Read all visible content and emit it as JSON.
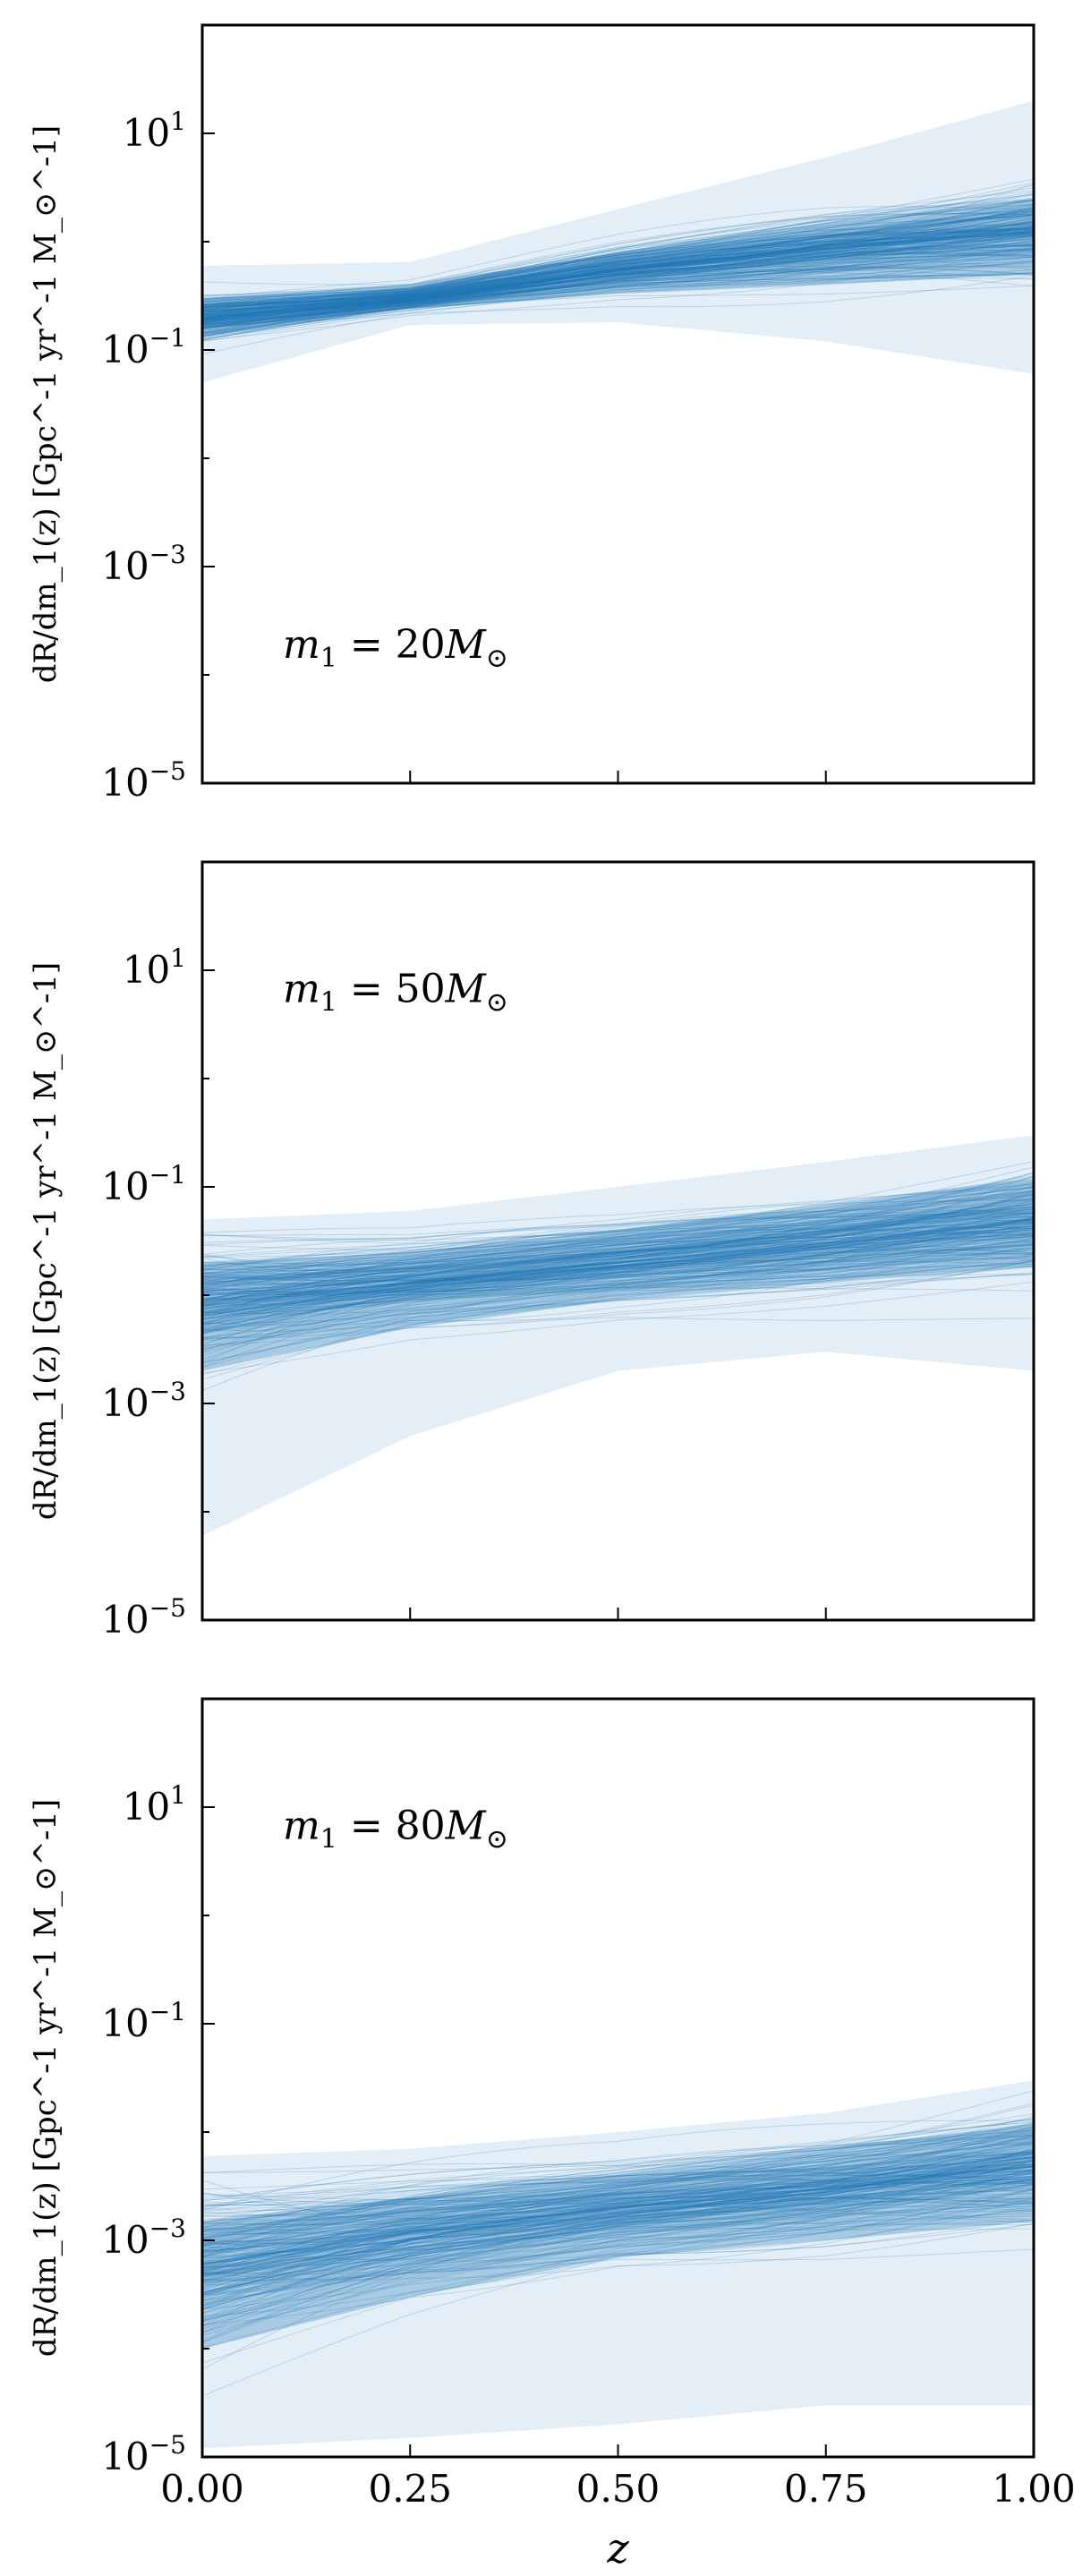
{
  "chart_data": [
    {
      "type": "line",
      "panel_id": "m20",
      "annotation": "m_1 = 20M_⊙",
      "annotation_parts": {
        "var": "m",
        "sub": "1",
        "eq": "= 20",
        "M": "M",
        "sun": "⊙"
      },
      "ylabel": "dR/dm_1(z) [Gpc^-1 yr^-1 M_⊙^-1]",
      "yscale": "log",
      "ylim": [
        1e-05,
        100
      ],
      "xlim": [
        0.0,
        1.0
      ],
      "ytick_labels": [
        {
          "base": "10",
          "exp": "1",
          "value": 10
        },
        {
          "base": "10",
          "exp": "−1",
          "value": 0.1
        },
        {
          "base": "10",
          "exp": "−3",
          "value": 0.001
        },
        {
          "base": "10",
          "exp": "−5",
          "value": 1e-05
        }
      ],
      "x_ticks": [
        0.0,
        0.25,
        0.5,
        0.75,
        1.0
      ],
      "show_xtick_labels": false,
      "xlabel": "",
      "color": "#1f77b4",
      "band": {
        "x": [
          0.0,
          0.25,
          0.5,
          0.75,
          1.0
        ],
        "median": [
          0.2,
          0.3,
          0.55,
          0.85,
          1.25
        ],
        "inner_low": [
          0.13,
          0.24,
          0.33,
          0.4,
          0.5
        ],
        "inner_high": [
          0.3,
          0.4,
          0.8,
          1.5,
          2.5
        ],
        "outer_low": [
          0.05,
          0.17,
          0.18,
          0.12,
          0.06
        ],
        "outer_high": [
          0.6,
          0.65,
          2.0,
          6.0,
          20.0
        ]
      }
    },
    {
      "type": "line",
      "panel_id": "m50",
      "annotation": "m_1 = 50M_⊙",
      "annotation_parts": {
        "var": "m",
        "sub": "1",
        "eq": "= 50",
        "M": "M",
        "sun": "⊙"
      },
      "ylabel": "dR/dm_1(z) [Gpc^-1 yr^-1 M_⊙^-1]",
      "yscale": "log",
      "ylim": [
        1e-05,
        100
      ],
      "xlim": [
        0.0,
        1.0
      ],
      "ytick_labels": [
        {
          "base": "10",
          "exp": "1",
          "value": 10
        },
        {
          "base": "10",
          "exp": "−1",
          "value": 0.1
        },
        {
          "base": "10",
          "exp": "−3",
          "value": 0.001
        },
        {
          "base": "10",
          "exp": "−5",
          "value": 1e-05
        }
      ],
      "x_ticks": [
        0.0,
        0.25,
        0.5,
        0.75,
        1.0
      ],
      "show_xtick_labels": false,
      "xlabel": "",
      "color": "#1f77b4",
      "band": {
        "x": [
          0.0,
          0.25,
          0.5,
          0.75,
          1.0
        ],
        "median": [
          0.008,
          0.013,
          0.02,
          0.03,
          0.05
        ],
        "inner_low": [
          0.002,
          0.005,
          0.009,
          0.013,
          0.018
        ],
        "inner_high": [
          0.02,
          0.025,
          0.04,
          0.07,
          0.12
        ],
        "outer_low": [
          6e-05,
          0.0005,
          0.002,
          0.003,
          0.002
        ],
        "outer_high": [
          0.05,
          0.06,
          0.1,
          0.17,
          0.3
        ]
      }
    },
    {
      "type": "line",
      "panel_id": "m80",
      "annotation": "m_1 = 80M_⊙",
      "annotation_parts": {
        "var": "m",
        "sub": "1",
        "eq": "= 80",
        "M": "M",
        "sun": "⊙"
      },
      "ylabel": "dR/dm_1(z) [Gpc^-1 yr^-1 M_⊙^-1]",
      "yscale": "log",
      "ylim": [
        1e-05,
        100
      ],
      "xlim": [
        0.0,
        1.0
      ],
      "ytick_labels": [
        {
          "base": "10",
          "exp": "1",
          "value": 10
        },
        {
          "base": "10",
          "exp": "−1",
          "value": 0.1
        },
        {
          "base": "10",
          "exp": "−3",
          "value": 0.001
        },
        {
          "base": "10",
          "exp": "−5",
          "value": 1e-05
        }
      ],
      "x_ticks": [
        0.0,
        0.25,
        0.5,
        0.75,
        1.0
      ],
      "x_tick_labels": [
        "0.00",
        "0.25",
        "0.50",
        "0.75",
        "1.00"
      ],
      "show_xtick_labels": true,
      "xlabel": "z",
      "color": "#1f77b4",
      "band": {
        "x": [
          0.0,
          0.25,
          0.5,
          0.75,
          1.0
        ],
        "median": [
          0.0006,
          0.0012,
          0.002,
          0.003,
          0.005
        ],
        "inner_low": [
          0.0001,
          0.0003,
          0.0007,
          0.001,
          0.0015
        ],
        "inner_high": [
          0.0015,
          0.0025,
          0.004,
          0.007,
          0.012
        ],
        "outer_low": [
          1.2e-05,
          1.5e-05,
          2e-05,
          3e-05,
          3e-05
        ],
        "outer_high": [
          0.006,
          0.007,
          0.01,
          0.015,
          0.03
        ]
      }
    }
  ]
}
